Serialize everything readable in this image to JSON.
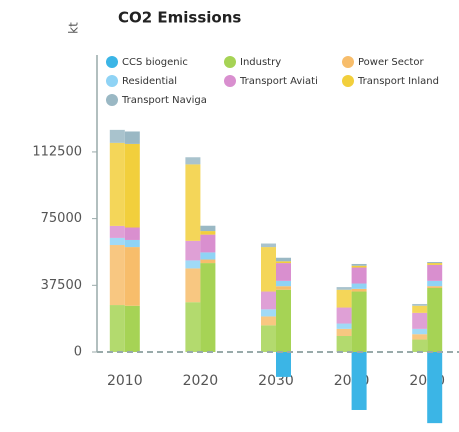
{
  "chart_data": {
    "type": "bar",
    "stacked": true,
    "title": "CO2 Emissions",
    "y_label": "kt",
    "categories": [
      "2010",
      "2020",
      "2030",
      "2040",
      "2050"
    ],
    "series": [
      {
        "name": "CCS biogenic",
        "color": "#3bb5e6",
        "values": [
          [
            0,
            0
          ],
          [
            0,
            0
          ],
          [
            0,
            -14000
          ],
          [
            0,
            -32600
          ],
          [
            0,
            -40000
          ]
        ]
      },
      {
        "name": "Industry",
        "color": "#a6d355",
        "values": [
          [
            26400,
            26000
          ],
          [
            28000,
            50000
          ],
          [
            15000,
            35000
          ],
          [
            9000,
            34000
          ],
          [
            7000,
            36000
          ]
        ]
      },
      {
        "name": "Power Sector",
        "color": "#f7bd6b",
        "values": [
          [
            33750,
            33000
          ],
          [
            19000,
            2000
          ],
          [
            5000,
            2000
          ],
          [
            4000,
            1500
          ],
          [
            3000,
            1000
          ]
        ]
      },
      {
        "name": "Residential",
        "color": "#8fd3f5",
        "values": [
          [
            4000,
            4000
          ],
          [
            4500,
            4000
          ],
          [
            4000,
            3000
          ],
          [
            3000,
            3000
          ],
          [
            3000,
            3000
          ]
        ]
      },
      {
        "name": "Transport Aviati",
        "color": "#d98fcf",
        "values": [
          [
            6750,
            7000
          ],
          [
            11000,
            10000
          ],
          [
            10000,
            10000
          ],
          [
            9000,
            9000
          ],
          [
            9000,
            9000
          ]
        ]
      },
      {
        "name": "Transport Inland",
        "color": "#f2cf3c",
        "values": [
          [
            46700,
            47000
          ],
          [
            43000,
            2000
          ],
          [
            25000,
            1000
          ],
          [
            10000,
            1000
          ],
          [
            4000,
            1000
          ]
        ]
      },
      {
        "name": "Transport Naviga",
        "color": "#9ab8c4",
        "values": [
          [
            7300,
            7000
          ],
          [
            4000,
            3000
          ],
          [
            2000,
            2000
          ],
          [
            1500,
            1000
          ],
          [
            1000,
            600
          ]
        ]
      }
    ],
    "ylim": [
      -42000,
      167000
    ],
    "yticks": [
      0,
      37500,
      75000,
      112500
    ]
  }
}
